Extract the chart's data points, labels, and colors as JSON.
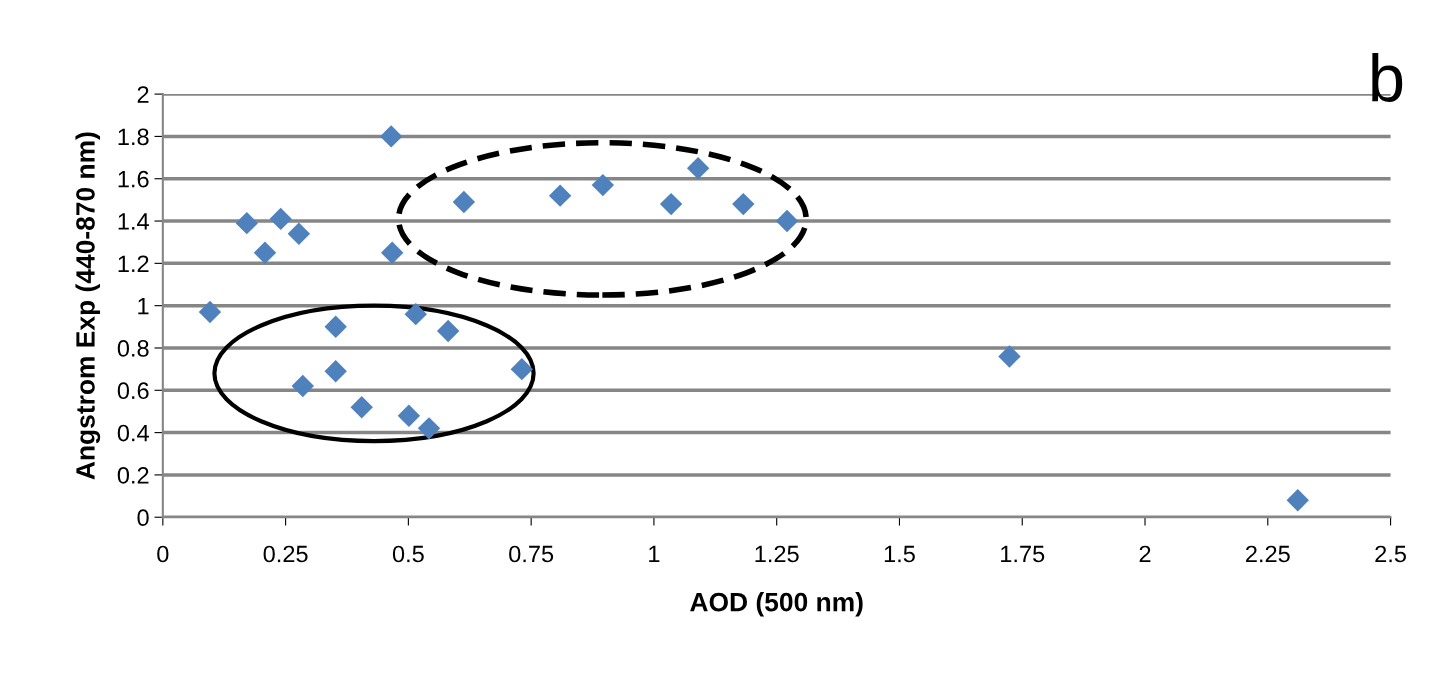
{
  "chart_data": {
    "type": "scatter",
    "xlabel": "AOD (500 nm)",
    "ylabel": "Angstrom Exp (440-870 nm)",
    "annotations": [
      "b"
    ],
    "x": [
      0.096,
      0.171,
      0.208,
      0.24,
      0.277,
      0.285,
      0.352,
      0.352,
      0.405,
      0.465,
      0.467,
      0.501,
      0.515,
      0.542,
      0.581,
      0.613,
      0.731,
      0.809,
      0.896,
      1.035,
      1.09,
      1.182,
      1.271,
      1.724,
      2.311
    ],
    "series": [
      {
        "color": "#4f81bd",
        "values": [
          0.97,
          1.39,
          1.25,
          1.41,
          1.34,
          0.62,
          0.9,
          0.69,
          0.52,
          1.8,
          1.25,
          0.48,
          0.96,
          0.42,
          0.88,
          1.49,
          0.7,
          1.52,
          1.57,
          1.48,
          1.65,
          1.48,
          1.4,
          0.76,
          0.08
        ]
      }
    ],
    "xlim": [
      0,
      2.5
    ],
    "xticks": [
      0,
      0.25,
      0.5,
      0.75,
      1,
      1.25,
      1.5,
      1.75,
      2,
      2.25,
      2.5
    ],
    "ylim": [
      0,
      2
    ],
    "yticks": [
      0,
      0.2,
      0.4,
      0.6,
      0.8,
      1,
      1.2,
      1.4,
      1.6,
      1.8,
      2
    ],
    "grid": "y",
    "marker": "diamond",
    "legend": false
  }
}
